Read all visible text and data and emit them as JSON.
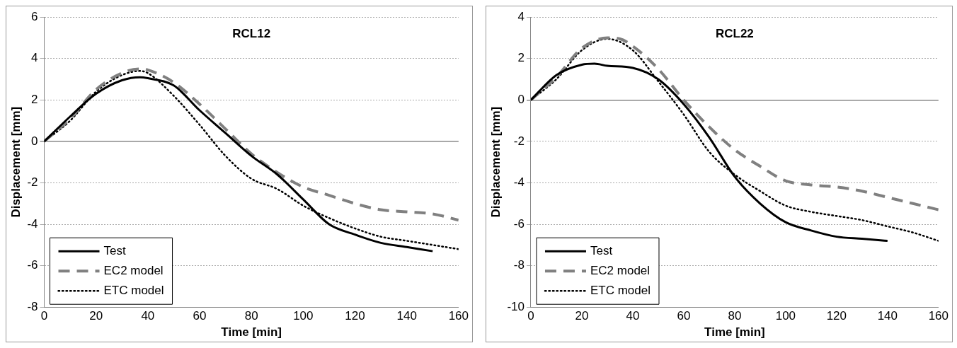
{
  "chart_data": [
    {
      "type": "line",
      "title": "RCL12",
      "xlabel": "Time [min]",
      "ylabel": "Displacement [mm]",
      "xlim": [
        0,
        160
      ],
      "xticks": [
        0,
        20,
        40,
        60,
        80,
        100,
        120,
        140,
        160
      ],
      "ylim": [
        -8,
        6
      ],
      "yticks": [
        -8,
        -6,
        -4,
        -2,
        0,
        2,
        4,
        6
      ],
      "grid": "y",
      "legend": "bottom left",
      "marker": "none",
      "series": [
        {
          "name": "Test",
          "color": "#000000",
          "line_style": "solid",
          "x": [
            0,
            10,
            20,
            30,
            37,
            40,
            50,
            60,
            70,
            80,
            90,
            100,
            110,
            120,
            130,
            140,
            150
          ],
          "values": [
            0,
            1.2,
            2.3,
            2.95,
            3.1,
            3.05,
            2.7,
            1.5,
            0.4,
            -0.7,
            -1.6,
            -2.8,
            -4.0,
            -4.5,
            -4.9,
            -5.1,
            -5.3
          ]
        },
        {
          "name": "EC2 model",
          "color": "#808080",
          "line_style": "dashed",
          "x": [
            0,
            10,
            20,
            30,
            37,
            40,
            50,
            60,
            70,
            80,
            90,
            100,
            110,
            120,
            130,
            140,
            150,
            160
          ],
          "values": [
            0,
            1.1,
            2.5,
            3.3,
            3.5,
            3.45,
            2.85,
            1.8,
            0.6,
            -0.6,
            -1.5,
            -2.2,
            -2.6,
            -3.0,
            -3.3,
            -3.4,
            -3.5,
            -3.8
          ]
        },
        {
          "name": "ETC model",
          "color": "#000000",
          "line_style": "dotted",
          "x": [
            0,
            10,
            20,
            30,
            37,
            40,
            50,
            60,
            70,
            80,
            90,
            100,
            110,
            120,
            130,
            140,
            150,
            160
          ],
          "values": [
            0,
            1.0,
            2.4,
            3.2,
            3.4,
            3.3,
            2.2,
            0.8,
            -0.7,
            -1.8,
            -2.3,
            -3.1,
            -3.7,
            -4.2,
            -4.6,
            -4.8,
            -5.0,
            -5.2
          ]
        }
      ]
    },
    {
      "type": "line",
      "title": "RCL22",
      "xlabel": "Time [min]",
      "ylabel": "Displacement [mm]",
      "xlim": [
        0,
        160
      ],
      "xticks": [
        0,
        20,
        40,
        60,
        80,
        100,
        120,
        140,
        160
      ],
      "ylim": [
        -10,
        4
      ],
      "yticks": [
        -10,
        -8,
        -6,
        -4,
        -2,
        0,
        2,
        4
      ],
      "grid": "y",
      "legend": "bottom left",
      "marker": "none",
      "series": [
        {
          "name": "Test",
          "color": "#000000",
          "line_style": "solid",
          "x": [
            0,
            10,
            20,
            25,
            30,
            40,
            50,
            60,
            70,
            80,
            90,
            100,
            110,
            120,
            130,
            140
          ],
          "values": [
            0,
            1.2,
            1.7,
            1.75,
            1.65,
            1.55,
            1.0,
            -0.2,
            -1.8,
            -3.7,
            -5.0,
            -5.9,
            -6.3,
            -6.6,
            -6.7,
            -6.8
          ]
        },
        {
          "name": "EC2 model",
          "color": "#808080",
          "line_style": "dashed",
          "x": [
            0,
            10,
            20,
            30,
            35,
            40,
            50,
            60,
            70,
            80,
            90,
            100,
            110,
            120,
            130,
            140,
            150,
            160
          ],
          "values": [
            0,
            1.1,
            2.5,
            3.0,
            2.95,
            2.6,
            1.5,
            0,
            -1.3,
            -2.4,
            -3.2,
            -3.9,
            -4.1,
            -4.2,
            -4.4,
            -4.7,
            -5.0,
            -5.3
          ]
        },
        {
          "name": "ETC model",
          "color": "#000000",
          "line_style": "dotted",
          "x": [
            0,
            10,
            20,
            30,
            40,
            50,
            60,
            70,
            80,
            90,
            100,
            110,
            120,
            130,
            140,
            150,
            160
          ],
          "values": [
            0,
            1.0,
            2.4,
            2.95,
            2.4,
            0.9,
            -0.7,
            -2.5,
            -3.6,
            -4.4,
            -5.1,
            -5.4,
            -5.6,
            -5.8,
            -6.1,
            -6.4,
            -6.8
          ]
        }
      ]
    }
  ]
}
